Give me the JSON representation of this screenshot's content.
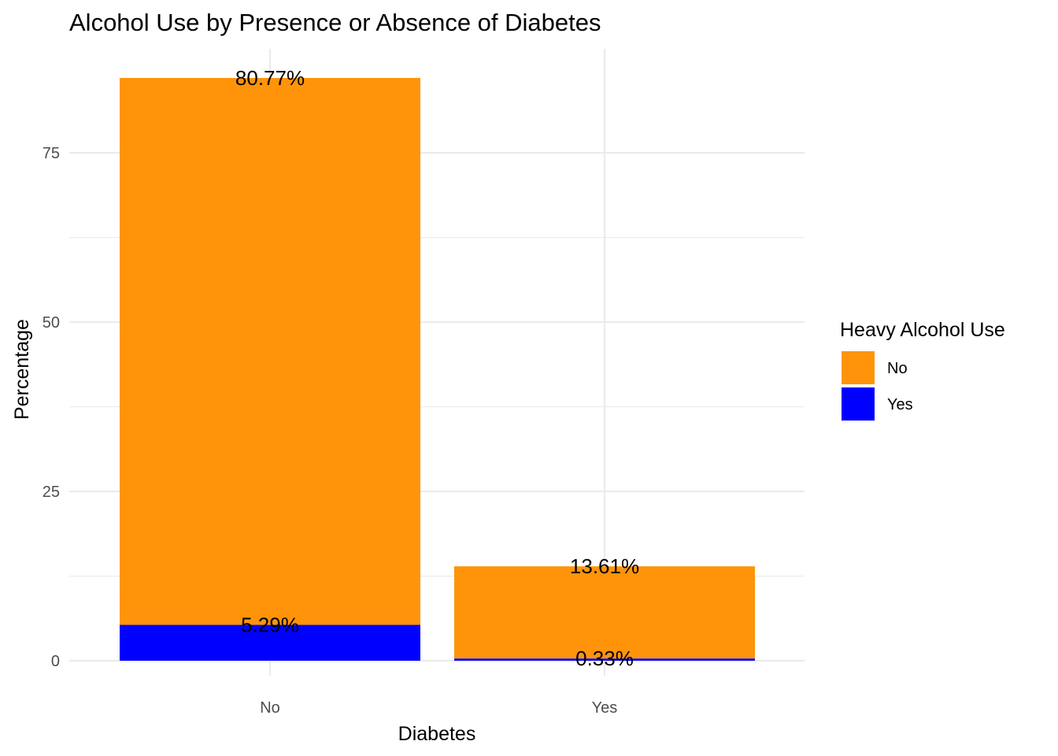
{
  "chart_data": {
    "type": "bar",
    "stacked": true,
    "title": "Alcohol Use by Presence or Absence of Diabetes",
    "xlabel": "Diabetes",
    "ylabel": "Percentage",
    "categories": [
      "No",
      "Yes"
    ],
    "series": [
      {
        "name": "No",
        "values": [
          80.77,
          13.61
        ],
        "labels": [
          "80.77%",
          "13.61%"
        ]
      },
      {
        "name": "Yes",
        "values": [
          5.29,
          0.33
        ],
        "labels": [
          "5.29%",
          "0.33%"
        ]
      }
    ],
    "ylim": [
      0,
      86.06
    ],
    "yticks": [
      0,
      25,
      50,
      75
    ],
    "legend": {
      "title": "Heavy Alcohol Use",
      "position": "right"
    },
    "colors": {
      "No": "#FF940A",
      "Yes": "#0000FF"
    },
    "grid": true
  }
}
